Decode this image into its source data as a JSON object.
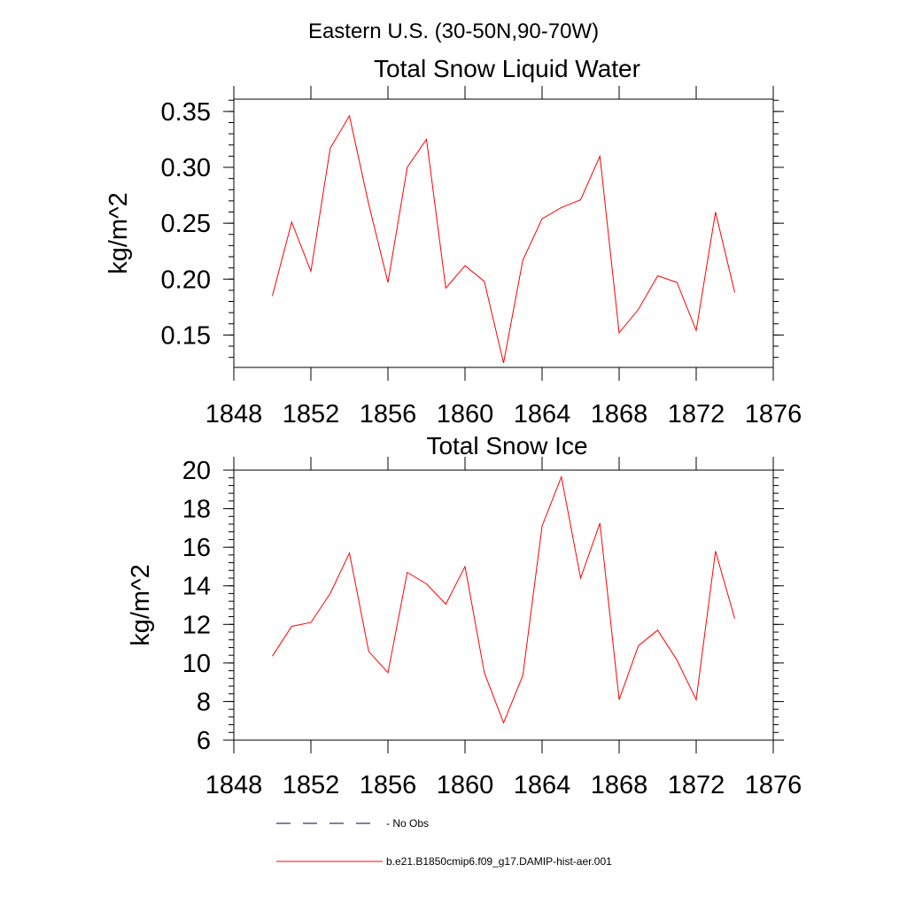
{
  "figure": {
    "main_title": "Eastern U.S. (30-50N,90-70W)"
  },
  "chart_data": [
    {
      "type": "line",
      "title": "Total Snow Liquid Water",
      "xlabel": "",
      "ylabel": "kg/m^2",
      "xlim": [
        1848,
        1876
      ],
      "ylim": [
        0.121,
        0.361
      ],
      "xticks": [
        1848,
        1852,
        1856,
        1860,
        1864,
        1868,
        1872,
        1876
      ],
      "xtick_labels": [
        "1848",
        "1852",
        "1856",
        "1860",
        "1864",
        "1868",
        "1872",
        "1876"
      ],
      "yticks": [
        0.15,
        0.2,
        0.25,
        0.3,
        0.35
      ],
      "ytick_labels": [
        "0.15",
        "0.20",
        "0.25",
        "0.30",
        "0.35"
      ],
      "series": [
        {
          "color": "#ff0000",
          "x": [
            1850,
            1851,
            1852,
            1853,
            1854,
            1855,
            1856,
            1857,
            1858,
            1859,
            1860,
            1861,
            1862,
            1863,
            1864,
            1865,
            1866,
            1867,
            1868,
            1869,
            1870,
            1871,
            1872,
            1873,
            1874
          ],
          "y": [
            0.185,
            0.251,
            0.207,
            0.317,
            0.346,
            0.267,
            0.197,
            0.3,
            0.325,
            0.192,
            0.212,
            0.198,
            0.125,
            0.217,
            0.254,
            0.264,
            0.271,
            0.31,
            0.152,
            0.173,
            0.203,
            0.197,
            0.154,
            0.26,
            0.188
          ]
        }
      ]
    },
    {
      "type": "line",
      "title": "Total Snow Ice",
      "xlabel": "",
      "ylabel": "kg/m^2",
      "xlim": [
        1848,
        1876
      ],
      "ylim": [
        6,
        20
      ],
      "xticks": [
        1848,
        1852,
        1856,
        1860,
        1864,
        1868,
        1872,
        1876
      ],
      "xtick_labels": [
        "1848",
        "1852",
        "1856",
        "1860",
        "1864",
        "1868",
        "1872",
        "1876"
      ],
      "yticks": [
        6,
        8,
        10,
        12,
        14,
        16,
        18,
        20
      ],
      "ytick_labels": [
        "6",
        "8",
        "10",
        "12",
        "14",
        "16",
        "18",
        "20"
      ],
      "series": [
        {
          "color": "#ff0000",
          "x": [
            1850,
            1851,
            1852,
            1853,
            1854,
            1855,
            1856,
            1857,
            1858,
            1859,
            1860,
            1861,
            1862,
            1863,
            1864,
            1865,
            1866,
            1867,
            1868,
            1869,
            1870,
            1871,
            1872,
            1873,
            1874
          ],
          "y": [
            10.35,
            11.9,
            12.1,
            13.6,
            15.7,
            10.6,
            9.5,
            14.7,
            14.1,
            13.05,
            15.0,
            9.5,
            6.9,
            9.35,
            17.1,
            19.65,
            14.4,
            17.25,
            8.1,
            10.9,
            11.7,
            10.15,
            8.1,
            15.8,
            12.3
          ]
        }
      ]
    }
  ],
  "legend": {
    "placement": "bottom",
    "items": [
      {
        "label": "- No Obs",
        "color": "#00004d",
        "style": "dashed"
      },
      {
        "label": "b.e21.B1850cmip6.f09_g17.DAMIP-hist-aer.001",
        "color": "#ff0000",
        "style": "solid"
      }
    ]
  }
}
